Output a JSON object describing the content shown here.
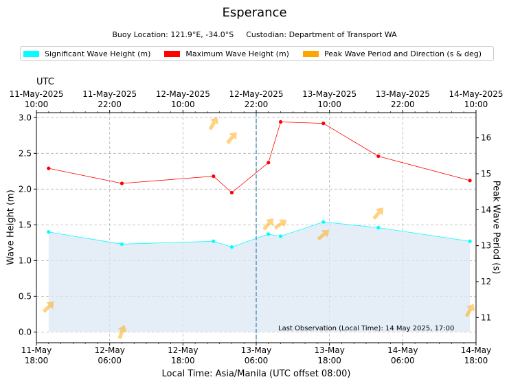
{
  "chart_data": {
    "type": "line",
    "title": "Esperance",
    "subtitle": {
      "location": "Buoy Location: 121.9°E, -34.0°S",
      "custodian": "Custodian: Department of Transport WA"
    },
    "legend": [
      {
        "label": "Significant Wave Height (m)",
        "color": "#00ffff"
      },
      {
        "label": "Maximum Wave Height (m)",
        "color": "#ff0000"
      },
      {
        "label": "Peak Wave Period and Direction (s & deg)",
        "color": "#ffa500"
      }
    ],
    "xlabel": "Local Time: Asia/Manila (UTC offset 08:00)",
    "xlabel_top": "UTC",
    "ylabel": "Wave Height (m)",
    "ylabel_right": "Peak Wave Period (s)",
    "x_unit": "hours since 11-May 18:00 local",
    "xlim": [
      0,
      72
    ],
    "ylim": [
      -0.15,
      3.07
    ],
    "ylim_right": [
      10.3,
      16.7
    ],
    "x_ticks_bottom": [
      {
        "x": 0,
        "line1": "11-May",
        "line2": "18:00"
      },
      {
        "x": 12,
        "line1": "12-May",
        "line2": "06:00"
      },
      {
        "x": 24,
        "line1": "12-May",
        "line2": "18:00"
      },
      {
        "x": 36,
        "line1": "13-May",
        "line2": "06:00"
      },
      {
        "x": 48,
        "line1": "13-May",
        "line2": "18:00"
      },
      {
        "x": 60,
        "line1": "14-May",
        "line2": "06:00"
      },
      {
        "x": 72,
        "line1": "14-May",
        "line2": "18:00"
      }
    ],
    "x_ticks_top": [
      {
        "x": 0,
        "line1": "11-May-2025",
        "line2": "10:00"
      },
      {
        "x": 12,
        "line1": "11-May-2025",
        "line2": "22:00"
      },
      {
        "x": 24,
        "line1": "12-May-2025",
        "line2": "10:00"
      },
      {
        "x": 36,
        "line1": "12-May-2025",
        "line2": "22:00"
      },
      {
        "x": 48,
        "line1": "13-May-2025",
        "line2": "10:00"
      },
      {
        "x": 60,
        "line1": "13-May-2025",
        "line2": "22:00"
      },
      {
        "x": 72,
        "line1": "14-May-2025",
        "line2": "10:00"
      }
    ],
    "y_ticks": [
      "0.0",
      "0.5",
      "1.0",
      "1.5",
      "2.0",
      "2.5",
      "3.0"
    ],
    "y_ticks_right": [
      "11",
      "12",
      "13",
      "14",
      "15",
      "16"
    ],
    "series": [
      {
        "name": "Significant Wave Height (m)",
        "color": "#00ffff",
        "x": [
          2,
          14,
          29,
          32,
          38,
          40,
          47,
          56,
          71
        ],
        "values": [
          1.4,
          1.23,
          1.27,
          1.19,
          1.37,
          1.34,
          1.54,
          1.46,
          1.27
        ]
      },
      {
        "name": "Maximum Wave Height (m)",
        "color": "#ff0000",
        "x": [
          2,
          14,
          29,
          32,
          38,
          40,
          47,
          56,
          71
        ],
        "values": [
          2.29,
          2.08,
          2.18,
          1.95,
          2.37,
          2.94,
          2.92,
          2.46,
          2.12
        ]
      }
    ],
    "peak_period": {
      "name": "Peak Wave Period and Direction (s & deg)",
      "color": "#ffa500",
      "x": [
        2,
        14,
        29,
        32,
        38,
        40,
        47,
        56,
        71
      ],
      "period_s": [
        11.3,
        10.6,
        16.4,
        16.0,
        13.6,
        13.6,
        13.3,
        13.9,
        11.2
      ],
      "direction_deg": [
        225,
        200,
        210,
        220,
        220,
        235,
        230,
        220,
        210
      ]
    },
    "current_time_x": 36,
    "annotation": "Last Observation (Local Time): 14 May 2025, 17:00"
  }
}
